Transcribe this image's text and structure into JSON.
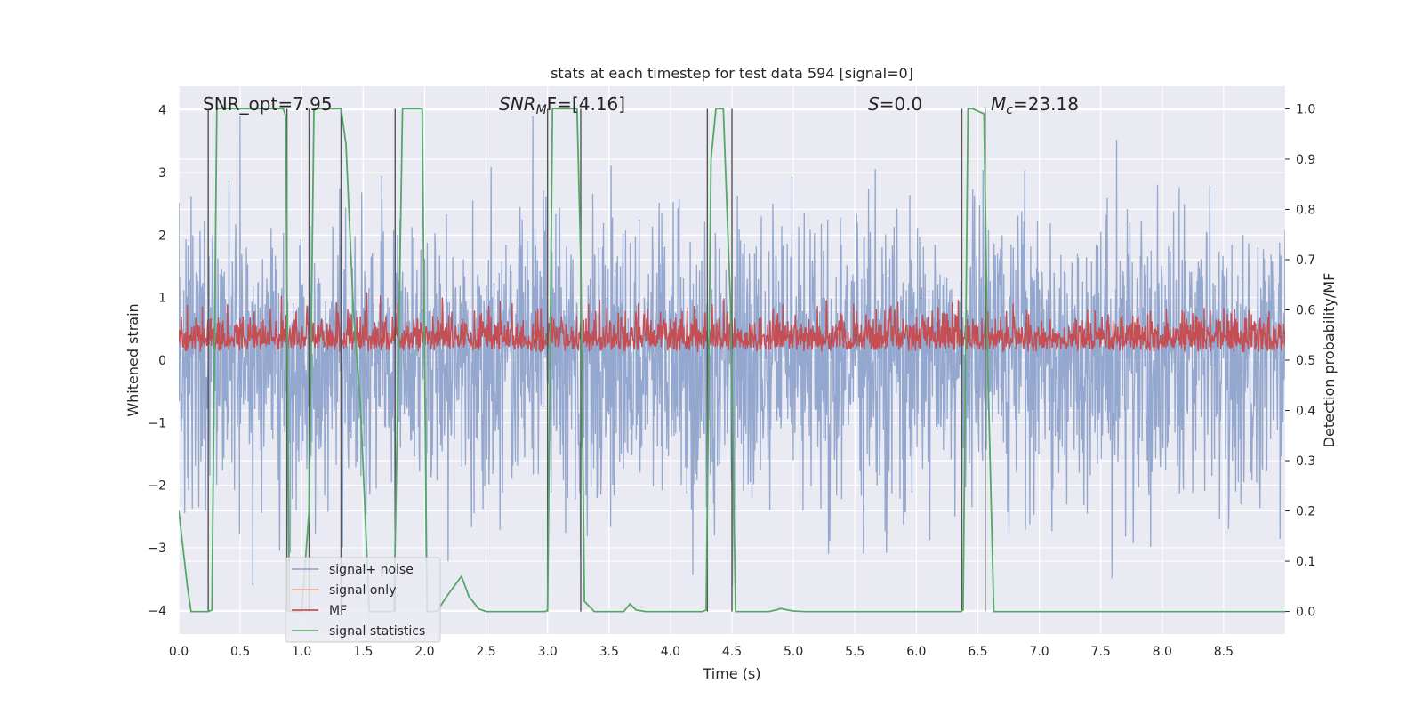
{
  "chart_data": {
    "type": "line",
    "title": "stats at each timestep for test data 594 [signal=0]",
    "xlabel": "Time (s)",
    "ylabel_left": "Whitened strain",
    "ylabel_right": "Detection probability/MF",
    "xlim": [
      0.0,
      9.0
    ],
    "ylim_left": [
      -4.38,
      4.38
    ],
    "ylim_right": [
      -0.045,
      1.045
    ],
    "x_ticks": [
      "0.0",
      "0.5",
      "1.0",
      "1.5",
      "2.0",
      "2.5",
      "3.0",
      "3.5",
      "4.0",
      "4.5",
      "5.0",
      "5.5",
      "6.0",
      "6.5",
      "7.0",
      "7.5",
      "8.0",
      "8.5"
    ],
    "y_ticks_left": [
      "−4",
      "−3",
      "−2",
      "−1",
      "0",
      "1",
      "2",
      "3",
      "4"
    ],
    "y_ticks_right": [
      "0.0",
      "0.1",
      "0.2",
      "0.3",
      "0.4",
      "0.5",
      "0.6",
      "0.7",
      "0.8",
      "0.9",
      "1.0"
    ],
    "grid": true,
    "annotations": {
      "snr_opt": "SNR_opt=7.95",
      "snr_mf_base": "SNR",
      "snr_mf_sub": "M",
      "snr_mf_rest": "F=[4.16]",
      "s_var": "S",
      "s_rest": "=0.0",
      "mc_base": "M",
      "mc_sub": "c",
      "mc_rest": "=23.18"
    },
    "legend": {
      "placement": "lower-left",
      "entries": [
        {
          "label": "signal+ noise",
          "color": "#8da0cb"
        },
        {
          "label": "signal only",
          "color": "#e8a98a"
        },
        {
          "label": "MF",
          "color": "#c03d3e"
        },
        {
          "label": "signal statistics",
          "color": "#55a868"
        }
      ]
    },
    "series": [
      {
        "name": "signal+ noise",
        "axis": "left",
        "color": "#8ea3cc",
        "description": "whitened strain noise, amplitude roughly -3.5 to 3.9"
      },
      {
        "name": "signal only",
        "axis": "left",
        "color": "#e8a98a",
        "values": []
      },
      {
        "name": "MF",
        "axis": "right",
        "color": "#c44e52",
        "description": "matched filter output fluctuating between 0.5 and 0.63"
      },
      {
        "name": "signal statistics",
        "axis": "right",
        "color": "#55a868",
        "x": [
          0.0,
          0.07,
          0.1,
          0.24,
          0.27,
          0.31,
          0.85,
          0.87,
          0.9,
          1.0,
          1.06,
          1.1,
          1.18,
          1.32,
          1.36,
          1.42,
          1.48,
          1.55,
          1.75,
          1.78,
          1.82,
          1.98,
          2.02,
          2.1,
          2.18,
          2.24,
          2.3,
          2.36,
          2.44,
          2.5,
          2.98,
          3.0,
          3.04,
          3.24,
          3.27,
          3.3,
          3.38,
          3.5,
          3.62,
          3.67,
          3.72,
          3.8,
          4.26,
          4.29,
          4.33,
          4.37,
          4.43,
          4.49,
          4.53,
          4.6,
          4.8,
          4.86,
          4.9,
          4.95,
          5.0,
          5.1,
          5.2,
          6.36,
          6.38,
          6.42,
          6.46,
          6.55,
          6.58,
          6.63,
          7.0,
          9.0
        ],
        "values": [
          0.2,
          0.05,
          0.0,
          0.0,
          0.003,
          1.0,
          1.0,
          0.985,
          0.0,
          0.0,
          0.2,
          1.0,
          1.0,
          1.0,
          0.93,
          0.6,
          0.4,
          0.0,
          0.0,
          0.4,
          1.0,
          1.0,
          0.0,
          0.0,
          0.03,
          0.05,
          0.07,
          0.03,
          0.005,
          0.0,
          0.0,
          0.003,
          1.0,
          1.0,
          0.7,
          0.02,
          0.0,
          0.0,
          0.0,
          0.015,
          0.003,
          0.0,
          0.0,
          0.003,
          0.9,
          1.0,
          1.0,
          0.6,
          0.0,
          0.0,
          0.0,
          0.003,
          0.006,
          0.003,
          0.001,
          0.0,
          0.0,
          0.0,
          0.003,
          1.0,
          1.0,
          0.99,
          0.5,
          0.0,
          0.0,
          0.0
        ]
      }
    ],
    "vertical_markers": [
      0.24,
      0.88,
      1.06,
      1.32,
      1.76,
      3.0,
      3.27,
      4.3,
      4.5,
      6.37,
      6.56
    ]
  }
}
